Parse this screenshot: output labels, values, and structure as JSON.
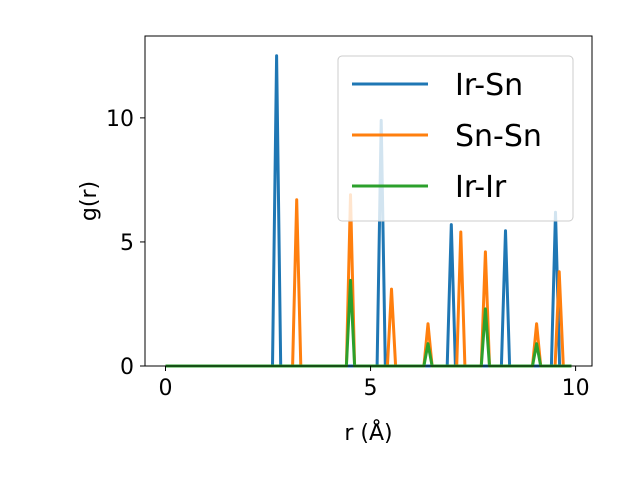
{
  "chart_data": {
    "type": "line",
    "title": "",
    "xlabel": "r (Å)",
    "ylabel": "g(r)",
    "xlim": [
      -0.5,
      10.4
    ],
    "ylim": [
      0,
      13.3
    ],
    "xticks": [
      0,
      5,
      10
    ],
    "yticks": [
      0,
      5,
      10
    ],
    "grid": false,
    "legend_position": "top-right",
    "peak_half_width": 0.1,
    "x_range": [
      0,
      9.9
    ],
    "series": [
      {
        "name": "Ir-Sn",
        "color": "#1f77b4",
        "peaks": [
          {
            "r": 2.71,
            "g": 12.5
          },
          {
            "r": 5.26,
            "g": 9.9
          },
          {
            "r": 6.97,
            "g": 5.7
          },
          {
            "r": 8.29,
            "g": 5.45
          },
          {
            "r": 9.51,
            "g": 6.2
          }
        ]
      },
      {
        "name": "Sn-Sn",
        "color": "#ff7f0e",
        "peaks": [
          {
            "r": 3.2,
            "g": 6.7
          },
          {
            "r": 4.51,
            "g": 6.9
          },
          {
            "r": 5.51,
            "g": 3.1
          },
          {
            "r": 6.4,
            "g": 1.7
          },
          {
            "r": 7.2,
            "g": 5.4
          },
          {
            "r": 7.8,
            "g": 4.6
          },
          {
            "r": 9.05,
            "g": 1.7
          },
          {
            "r": 9.6,
            "g": 3.8
          }
        ]
      },
      {
        "name": "Ir-Ir",
        "color": "#2ca02c",
        "peaks": [
          {
            "r": 4.51,
            "g": 3.45
          },
          {
            "r": 6.4,
            "g": 0.9
          },
          {
            "r": 7.8,
            "g": 2.3
          },
          {
            "r": 9.05,
            "g": 0.9
          }
        ]
      }
    ]
  }
}
